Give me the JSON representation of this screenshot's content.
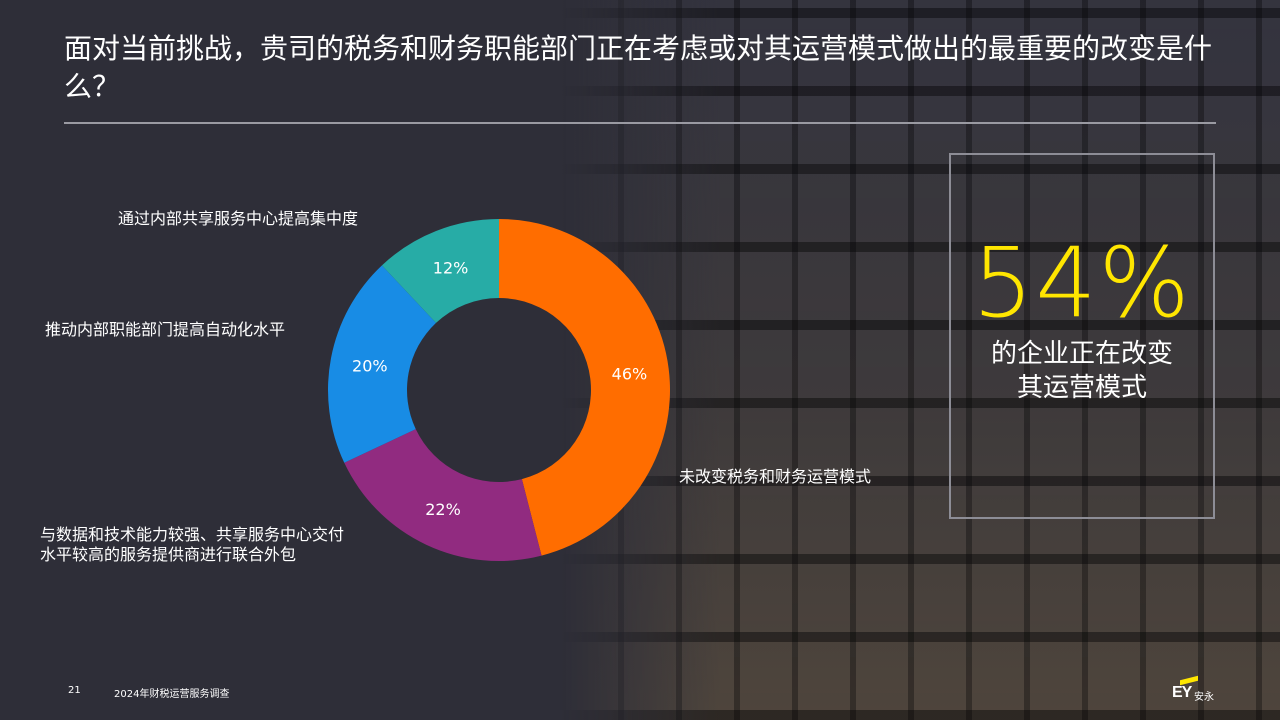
{
  "slide": {
    "title": "面对当前挑战，贵司的税务和财务职能部门正在考虑或对其运营模式做出的最重要的改变是什么？",
    "page_number": "21",
    "footer_text": "2024年财税运营服务调查",
    "logo_text": "EY",
    "logo_cn": "安永"
  },
  "callout": {
    "value": "54%",
    "line1": "的企业正在改变",
    "line2": "其运营模式",
    "value_color": "#ffe600"
  },
  "chart_data": {
    "type": "pie",
    "donut": true,
    "categories": [
      "未改变税务和财务运营模式",
      "与数据和技术能力较强、共享服务中心交付水平较高的服务提供商进行联合外包",
      "推动内部职能部门提高自动化水平",
      "通过内部共享服务中心提高集中度"
    ],
    "values": [
      46,
      22,
      20,
      12
    ],
    "value_labels": [
      "46%",
      "22%",
      "20%",
      "12%"
    ],
    "colors": [
      "#ff6d00",
      "#912b80",
      "#188ce5",
      "#27aca6"
    ],
    "label_lines": [
      [
        "未改变税务和财务运营模式"
      ],
      [
        "与数据和技术能力较强、共享服务中心交付",
        "水平较高的服务提供商进行联合外包"
      ],
      [
        "推动内部职能部门提高自动化水平"
      ],
      [
        "通过内部共享服务中心提高集中度"
      ]
    ],
    "start_angle_deg": 0,
    "direction": "clockwise"
  }
}
